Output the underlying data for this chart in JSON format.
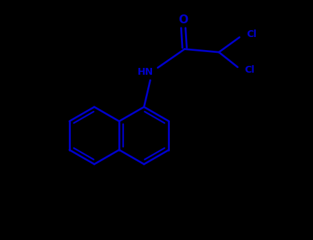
{
  "bg_color": "#000000",
  "bond_color": "#0000CC",
  "text_color": "#0000CC",
  "line_width": 2.0,
  "font_size": 10,
  "fig_width": 4.55,
  "fig_height": 3.5,
  "dpi": 100,
  "xlim": [
    0.0,
    5.0
  ],
  "ylim": [
    0.5,
    4.0
  ]
}
